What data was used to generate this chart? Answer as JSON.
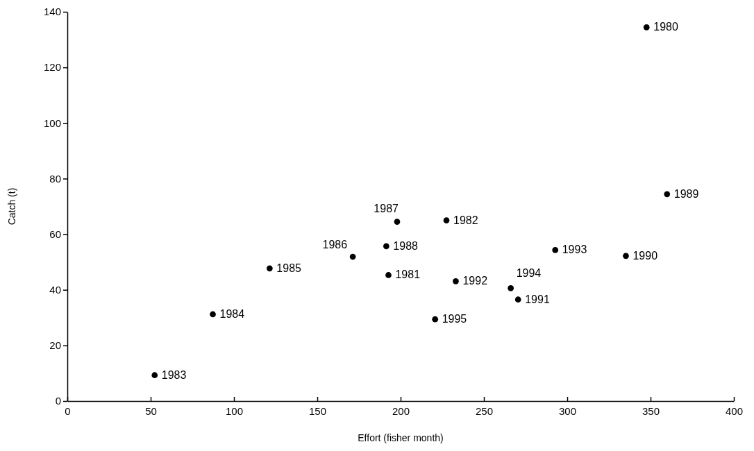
{
  "chart_data": {
    "type": "scatter",
    "xlabel": "Effort (fisher month)",
    "ylabel": "Catch (t)",
    "x": [
      347.6,
      192.7,
      227.5,
      52.4,
      87.3,
      121.4,
      171.3,
      197.9,
      191.4,
      359.9,
      335.2,
      270.5,
      233.1,
      292.8,
      266.1,
      220.7
    ],
    "values": [
      134.4,
      45.3,
      65.0,
      9.3,
      31.2,
      47.7,
      51.9,
      64.5,
      55.7,
      74.4,
      52.2,
      36.5,
      43.1,
      54.3,
      40.6,
      29.4
    ],
    "annotations": [
      {
        "text": "1980",
        "x": 347.6,
        "y": 134.4
      },
      {
        "text": "1981",
        "x": 192.7,
        "y": 45.3
      },
      {
        "text": "1982",
        "x": 227.5,
        "y": 65.0
      },
      {
        "text": "1983",
        "x": 52.4,
        "y": 9.3
      },
      {
        "text": "1984",
        "x": 87.3,
        "y": 31.2
      },
      {
        "text": "1985",
        "x": 121.4,
        "y": 47.7
      },
      {
        "text": "1986",
        "x": 171.3,
        "y": 51.9
      },
      {
        "text": "1987",
        "x": 197.9,
        "y": 64.5
      },
      {
        "text": "1988",
        "x": 191.4,
        "y": 55.7
      },
      {
        "text": "1989",
        "x": 359.9,
        "y": 74.4
      },
      {
        "text": "1990",
        "x": 335.2,
        "y": 52.2
      },
      {
        "text": "1991",
        "x": 270.5,
        "y": 36.5
      },
      {
        "text": "1992",
        "x": 233.1,
        "y": 43.1
      },
      {
        "text": "1993",
        "x": 292.8,
        "y": 54.3
      },
      {
        "text": "1994",
        "x": 266.1,
        "y": 40.6
      },
      {
        "text": "1995",
        "x": 220.7,
        "y": 29.4
      }
    ],
    "color": "#000000",
    "marker": "circle",
    "xlim": [
      0,
      400
    ],
    "xticks": [
      0,
      50,
      100,
      150,
      200,
      250,
      300,
      350,
      400
    ],
    "ylim": [
      0,
      140
    ],
    "yticks": [
      0,
      20,
      40,
      60,
      80,
      100,
      120,
      140
    ]
  }
}
